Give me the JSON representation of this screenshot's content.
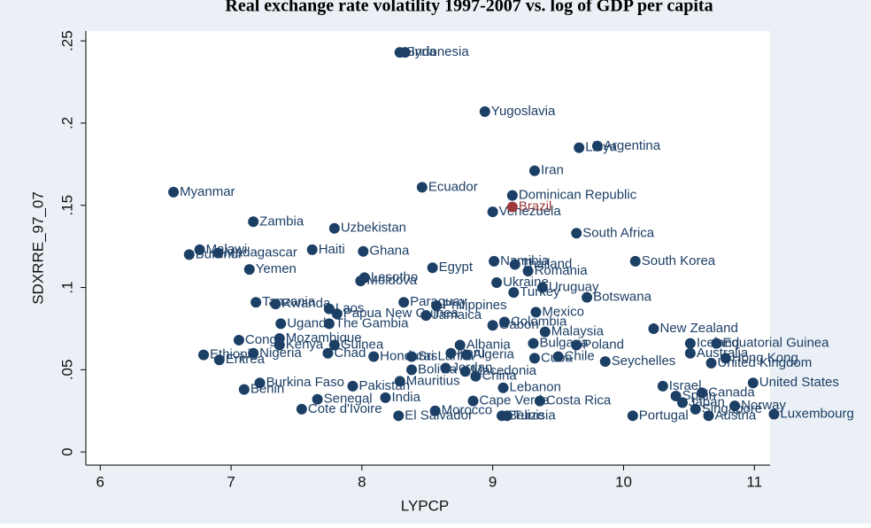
{
  "chart_data": {
    "type": "scatter",
    "title": "Real exchange rate volatility 1997-2007 vs. log of GDP per capita",
    "xlabel": "LYPCP",
    "ylabel": "SDXRRE_97_07",
    "xlim": [
      5.89,
      11.12
    ],
    "ylim": [
      -0.008,
      0.256
    ],
    "xticks": [
      6,
      7,
      8,
      9,
      10,
      11
    ],
    "yticks": [
      0,
      {
        "value": 0.05,
        "label": ".05"
      },
      {
        "value": 0.1,
        "label": ".1"
      },
      {
        "value": 0.15,
        "label": ".15"
      },
      {
        "value": 0.2,
        "label": ".2"
      },
      {
        "value": 0.25,
        "label": ".25"
      }
    ],
    "series": [
      {
        "color": "#1c3f66",
        "labels": [
          "Syria",
          "Indonesia",
          "Yugoslavia",
          "Libya",
          "Argentina",
          "Iran",
          "Myanmar",
          "Ecuador",
          "Dominican Republic",
          "Venezuela",
          "Zambia",
          "Uzbekistan",
          "South Africa",
          "Malawi",
          "Burundi",
          "Madagascar",
          "Haiti",
          "Ghana",
          "Yemen",
          "Egypt",
          "Namibia",
          "Thailand",
          "Romania",
          "South Korea",
          "Lesotho",
          "Moldova",
          "Ukraine",
          "Uruguay",
          "Turkey",
          "Botswana",
          "Tanzania",
          "Rwanda",
          "Laos",
          "Paraguay",
          "Philippines",
          "Papua New Guinea",
          "Mexico",
          "Jamaica",
          "Uganda",
          "The Gambia",
          "Gabon",
          "Colombia",
          "Malaysia",
          "New Zealand",
          "Congo",
          "Mozambique",
          "Kenya",
          "Guinea",
          "Albania",
          "Bulgaria",
          "Poland",
          "Iceland",
          "Equatorial Guinea",
          "Ethiopia",
          "Nigeria",
          "Eritrea",
          "Chad",
          "Honduras",
          "Sri Lanka",
          "Peru",
          "Algeria",
          "Cuba",
          "Chile",
          "Seychelles",
          "Australia",
          "Hong Kong",
          "United Kingdom",
          "Bolivia",
          "Jordan",
          "Macedonia",
          "Mauritius",
          "China",
          "Lebanon",
          "United States",
          "Burkina Faso",
          "Benin",
          "Pakistan",
          "India",
          "Senegal",
          "Cape Verde",
          "Costa Rica",
          "Cote d'Ivoire",
          "Morocco",
          "El Salvador",
          "Tunisia",
          "Belize",
          "Portugal",
          "Austria",
          "Luxembourg",
          "Canada",
          "Japan",
          "Norway",
          "Singapore",
          "Israel",
          "Spain"
        ],
        "x": [
          8.29,
          8.33,
          8.94,
          9.66,
          9.8,
          9.32,
          6.56,
          8.46,
          9.15,
          9.0,
          7.17,
          7.79,
          9.64,
          6.76,
          6.68,
          6.9,
          7.62,
          8.01,
          7.14,
          8.54,
          9.01,
          9.17,
          9.27,
          10.09,
          8.02,
          7.99,
          9.03,
          9.38,
          9.16,
          9.72,
          7.19,
          7.34,
          7.75,
          8.32,
          8.57,
          7.81,
          9.33,
          8.49,
          7.38,
          7.75,
          9.0,
          9.09,
          9.4,
          10.23,
          7.06,
          7.37,
          7.37,
          7.79,
          8.75,
          9.31,
          9.64,
          10.51,
          10.71,
          6.79,
          7.17,
          6.91,
          7.74,
          8.09,
          8.38,
          8.68,
          8.8,
          9.32,
          9.5,
          9.86,
          10.51,
          10.78,
          10.67,
          8.38,
          8.64,
          8.79,
          8.29,
          8.87,
          9.08,
          10.99,
          7.22,
          7.1,
          7.93,
          8.18,
          7.66,
          8.85,
          9.36,
          7.54,
          8.56,
          8.28,
          9.11,
          9.07,
          10.07,
          10.65,
          11.15,
          10.6,
          10.45,
          10.85,
          10.55,
          10.3,
          10.4
        ],
        "values": [
          0.243,
          0.243,
          0.207,
          0.185,
          0.186,
          0.171,
          0.158,
          0.161,
          0.156,
          0.146,
          0.14,
          0.136,
          0.133,
          0.123,
          0.12,
          0.121,
          0.123,
          0.122,
          0.111,
          0.112,
          0.116,
          0.114,
          0.11,
          0.116,
          0.106,
          0.104,
          0.103,
          0.1,
          0.097,
          0.094,
          0.091,
          0.09,
          0.087,
          0.091,
          0.089,
          0.084,
          0.085,
          0.083,
          0.078,
          0.078,
          0.077,
          0.079,
          0.073,
          0.075,
          0.068,
          0.069,
          0.065,
          0.065,
          0.065,
          0.066,
          0.065,
          0.066,
          0.066,
          0.059,
          0.06,
          0.056,
          0.06,
          0.058,
          0.058,
          0.06,
          0.059,
          0.057,
          0.058,
          0.055,
          0.06,
          0.057,
          0.054,
          0.05,
          0.051,
          0.049,
          0.043,
          0.046,
          0.039,
          0.042,
          0.042,
          0.038,
          0.04,
          0.033,
          0.032,
          0.031,
          0.031,
          0.026,
          0.025,
          0.022,
          0.022,
          0.022,
          0.022,
          0.022,
          0.023,
          0.036,
          0.03,
          0.028,
          0.026,
          0.04,
          0.034
        ]
      },
      {
        "color": "#9e3a3a",
        "labels": [
          "Brazil"
        ],
        "x": [
          9.15
        ],
        "values": [
          0.149
        ]
      }
    ]
  }
}
